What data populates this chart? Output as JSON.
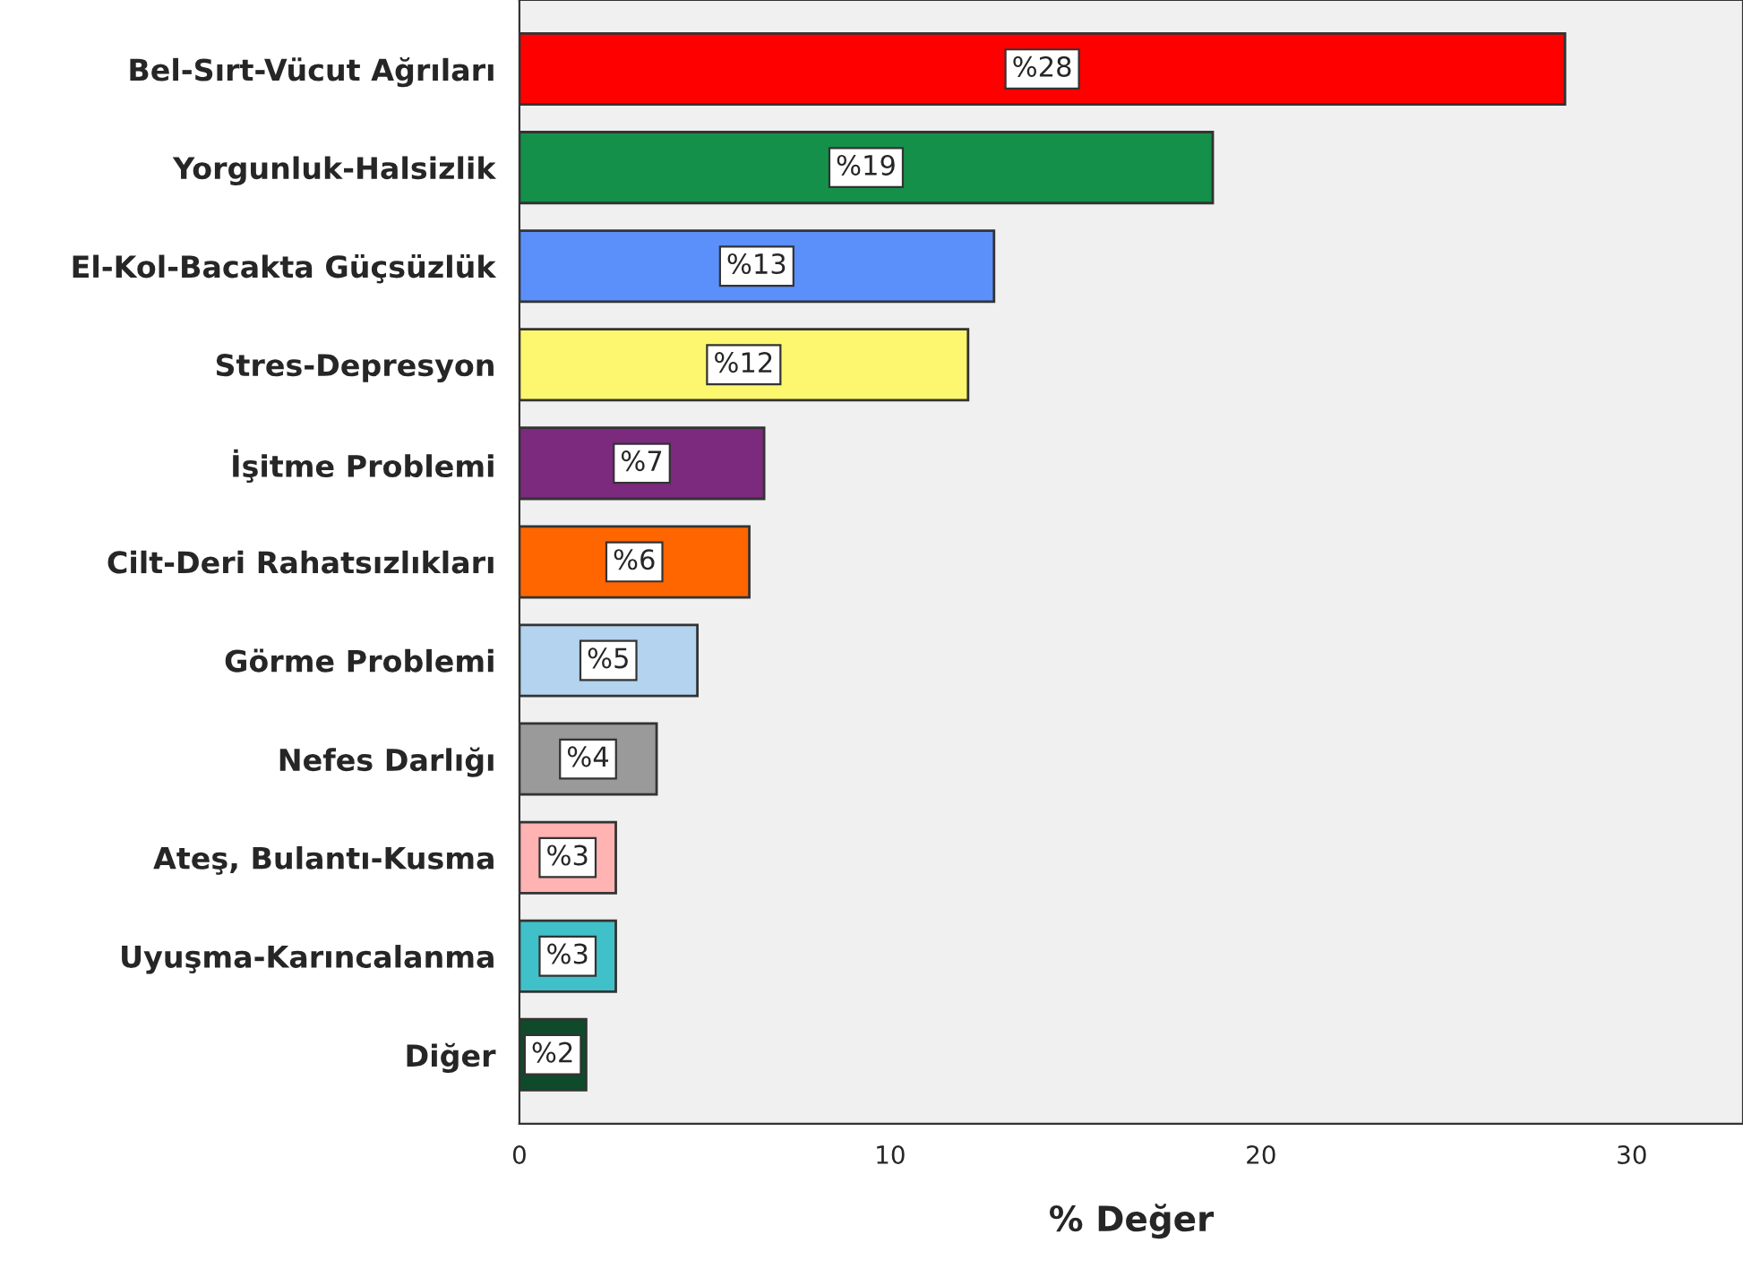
{
  "chart_data": {
    "type": "bar",
    "orientation": "horizontal",
    "xlabel": "% Değer",
    "categories": [
      "Bel-Sırt-Vücut Ağrıları",
      "Yorgunluk-Halsizlik",
      "El-Kol-Bacakta Güçsüzlük",
      "Stres-Depresyon",
      "İşitme Problemi",
      "Cilt-Deri Rahatsızlıkları",
      "Görme Problemi",
      "Nefes Darlığı",
      "Ateş, Bulantı-Kusma",
      "Uyuşma-Karıncalanma",
      "Diğer"
    ],
    "values": [
      28.2,
      18.7,
      12.8,
      12.1,
      6.6,
      6.2,
      4.8,
      3.7,
      2.6,
      2.6,
      1.8
    ],
    "colors": [
      "#ff0000",
      "#14904a",
      "#5b8ff9",
      "#fdf76f",
      "#7b2a7d",
      "#ff6600",
      "#b3d3ef",
      "#9a9a9a",
      "#ffb3b3",
      "#40c0c8",
      "#0f4a2a"
    ],
    "value_labels": [
      "%28",
      "%19",
      "%13",
      "%12",
      "%7",
      "%6",
      "%5",
      "%4",
      "%3",
      "%3",
      "%2"
    ],
    "xlim": [
      0,
      33
    ],
    "xticks": [
      0,
      10,
      20,
      30
    ],
    "grid": false,
    "legend": false
  }
}
